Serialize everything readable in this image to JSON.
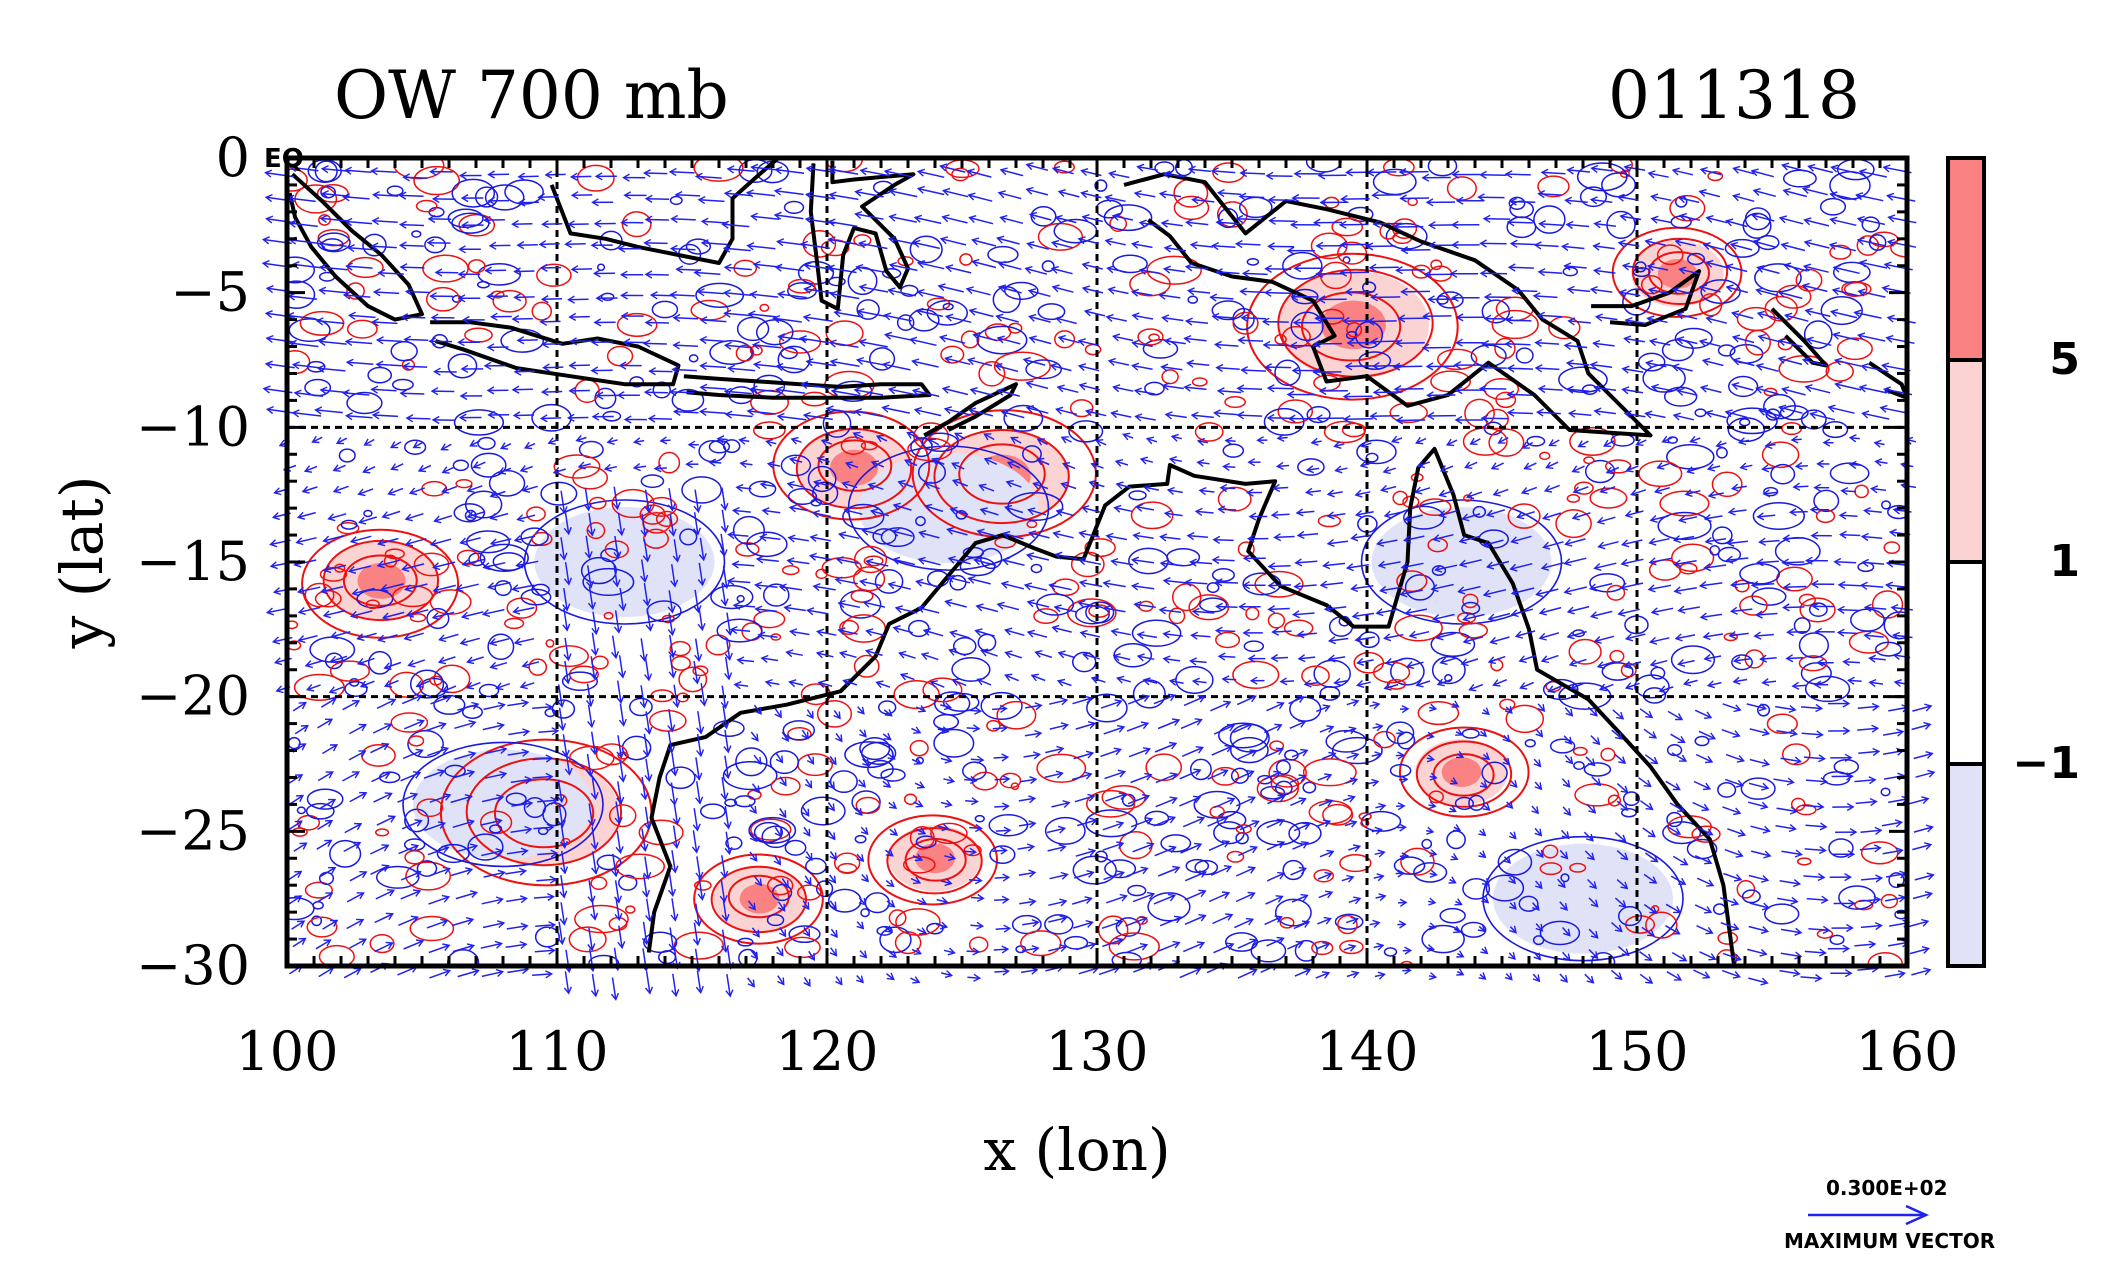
{
  "chart_data": {
    "type": "contour-vector-map",
    "title_left": "OW 700 mb",
    "title_right": "011318",
    "xlabel": "x (lon)",
    "ylabel": "y (lat)",
    "xlim": [
      100,
      160
    ],
    "ylim": [
      -30,
      0
    ],
    "x_ticks": [
      100,
      110,
      120,
      130,
      140,
      150,
      160
    ],
    "x_tick_labels": [
      "100",
      "110",
      "120",
      "130",
      "140",
      "150",
      "160"
    ],
    "y_ticks": [
      0,
      -5,
      -10,
      -15,
      -20,
      -25,
      -30
    ],
    "y_tick_labels": [
      "0",
      "−5",
      "−10",
      "−15",
      "−20",
      "−25",
      "−30"
    ],
    "corner_label": "EQ",
    "grid": true,
    "gridlines_x": [
      110,
      120,
      130,
      140,
      150
    ],
    "gridlines_y": [
      -10,
      -20
    ],
    "colorbar": {
      "levels": [
        -1,
        1,
        5
      ],
      "level_labels": [
        "−1",
        "1",
        "5"
      ],
      "colors": [
        "#e0e3f7",
        "#ffffff",
        "#fcd3d3",
        "#fa8282"
      ]
    },
    "contour_colors": {
      "positive": "#ee1111",
      "negative": "#1a1add"
    },
    "vector_color": "#2222ee",
    "coast_color": "#000000",
    "vector_key": {
      "magnitude_label": "0.300E+02",
      "caption": "MAXIMUM VECTOR"
    },
    "features": [
      {
        "name": "vortex",
        "lon": 109.5,
        "lat": -24.3,
        "value": 6
      },
      {
        "name": "vortex",
        "lon": 103.5,
        "lat": -15.7,
        "value": 4
      },
      {
        "name": "vortex",
        "lon": 126.5,
        "lat": -11.8,
        "value": 5
      },
      {
        "name": "vortex",
        "lon": 121.0,
        "lat": -11.5,
        "value": 4
      },
      {
        "name": "vortex",
        "lon": 143.5,
        "lat": -22.8,
        "value": 3
      },
      {
        "name": "vortex",
        "lon": 139.5,
        "lat": -6.2,
        "value": 6
      },
      {
        "name": "vortex",
        "lon": 151.5,
        "lat": -4.3,
        "value": 3
      },
      {
        "name": "vortex",
        "lon": 117.5,
        "lat": -27.5,
        "value": 3
      },
      {
        "name": "vortex",
        "lon": 124.0,
        "lat": -26.0,
        "value": 3
      },
      {
        "name": "strain",
        "lon": 108.0,
        "lat": -24.0,
        "value": -2
      },
      {
        "name": "strain",
        "lon": 112.5,
        "lat": -15.0,
        "value": -2
      },
      {
        "name": "strain",
        "lon": 143.5,
        "lat": -15.0,
        "value": -2
      },
      {
        "name": "strain",
        "lon": 124.5,
        "lat": -13.0,
        "value": -2
      },
      {
        "name": "strain",
        "lon": 148.0,
        "lat": -27.5,
        "value": -2
      }
    ],
    "coastlines": [
      {
        "name": "sumatra",
        "points": [
          [
            100.2,
            -0.6
          ],
          [
            101.3,
            -1.6
          ],
          [
            102.4,
            -2.7
          ],
          [
            103.5,
            -3.6
          ],
          [
            104.5,
            -4.7
          ],
          [
            105.0,
            -5.8
          ],
          [
            104.0,
            -6.0
          ],
          [
            103.0,
            -5.5
          ],
          [
            101.8,
            -4.4
          ],
          [
            100.9,
            -3.3
          ],
          [
            100.3,
            -2.2
          ],
          [
            100.1,
            -1.3
          ]
        ]
      },
      {
        "name": "java",
        "points": [
          [
            105.3,
            -6.1
          ],
          [
            106.8,
            -6.1
          ],
          [
            108.3,
            -6.3
          ],
          [
            110.2,
            -6.9
          ],
          [
            111.5,
            -6.7
          ],
          [
            113.0,
            -7.0
          ],
          [
            114.5,
            -7.7
          ],
          [
            114.3,
            -8.4
          ],
          [
            112.5,
            -8.4
          ],
          [
            110.5,
            -8.1
          ],
          [
            108.5,
            -7.8
          ],
          [
            106.5,
            -7.1
          ],
          [
            105.5,
            -6.8
          ]
        ]
      },
      {
        "name": "lesser-sunda",
        "points": [
          [
            114.7,
            -8.1
          ],
          [
            116.0,
            -8.2
          ],
          [
            117.5,
            -8.3
          ],
          [
            119.0,
            -8.4
          ],
          [
            120.5,
            -8.5
          ],
          [
            122.0,
            -8.4
          ],
          [
            123.5,
            -8.4
          ],
          [
            123.8,
            -8.8
          ],
          [
            122.0,
            -8.9
          ],
          [
            120.0,
            -8.9
          ],
          [
            118.0,
            -8.9
          ],
          [
            116.0,
            -8.8
          ],
          [
            114.8,
            -8.7
          ]
        ]
      },
      {
        "name": "borneo",
        "points": [
          [
            109.8,
            -1.0
          ],
          [
            110.5,
            -2.8
          ],
          [
            111.8,
            -3.0
          ],
          [
            113.0,
            -3.3
          ],
          [
            114.5,
            -3.6
          ],
          [
            116.0,
            -3.9
          ],
          [
            116.5,
            -3.0
          ],
          [
            116.5,
            -1.5
          ],
          [
            117.5,
            -0.6
          ],
          [
            118.2,
            0.0
          ]
        ]
      },
      {
        "name": "sulawesi",
        "points": [
          [
            119.5,
            -0.2
          ],
          [
            119.4,
            -2.0
          ],
          [
            119.6,
            -3.6
          ],
          [
            119.8,
            -5.3
          ],
          [
            120.4,
            -5.6
          ],
          [
            120.6,
            -3.6
          ],
          [
            121.0,
            -2.6
          ],
          [
            121.8,
            -2.8
          ],
          [
            122.2,
            -4.2
          ],
          [
            122.7,
            -4.8
          ],
          [
            123.0,
            -4.1
          ],
          [
            122.5,
            -3.0
          ],
          [
            121.3,
            -1.8
          ],
          [
            122.5,
            -1.0
          ],
          [
            123.2,
            -0.6
          ],
          [
            121.0,
            -0.8
          ],
          [
            120.2,
            -0.9
          ],
          [
            120.2,
            -0.1
          ]
        ]
      },
      {
        "name": "timor",
        "points": [
          [
            123.6,
            -10.3
          ],
          [
            124.5,
            -9.8
          ],
          [
            125.5,
            -9.1
          ],
          [
            127.0,
            -8.4
          ],
          [
            126.8,
            -8.8
          ],
          [
            125.5,
            -9.6
          ],
          [
            124.5,
            -10.1
          ]
        ]
      },
      {
        "name": "new-guinea",
        "points": [
          [
            131.0,
            -1.0
          ],
          [
            132.5,
            -0.6
          ],
          [
            134.0,
            -0.9
          ],
          [
            135.5,
            -2.8
          ],
          [
            137.0,
            -1.6
          ],
          [
            138.5,
            -1.9
          ],
          [
            140.5,
            -2.4
          ],
          [
            142.0,
            -3.1
          ],
          [
            144.0,
            -3.8
          ],
          [
            145.6,
            -4.9
          ],
          [
            146.5,
            -6.0
          ],
          [
            147.8,
            -6.8
          ],
          [
            148.2,
            -8.0
          ],
          [
            149.5,
            -9.3
          ],
          [
            150.5,
            -10.3
          ],
          [
            149.0,
            -10.2
          ],
          [
            147.5,
            -10.1
          ],
          [
            146.2,
            -8.8
          ],
          [
            144.5,
            -7.6
          ],
          [
            143.0,
            -8.8
          ],
          [
            141.5,
            -9.2
          ],
          [
            140.0,
            -8.1
          ],
          [
            138.5,
            -8.3
          ],
          [
            138.0,
            -7.0
          ],
          [
            138.8,
            -6.6
          ],
          [
            138.0,
            -5.3
          ],
          [
            136.5,
            -4.6
          ],
          [
            135.0,
            -4.4
          ],
          [
            133.5,
            -3.9
          ],
          [
            132.7,
            -2.9
          ],
          [
            131.9,
            -2.3
          ]
        ]
      },
      {
        "name": "new-britain",
        "points": [
          [
            148.3,
            -5.5
          ],
          [
            149.8,
            -5.5
          ],
          [
            151.2,
            -5.0
          ],
          [
            152.3,
            -4.2
          ],
          [
            151.8,
            -5.6
          ],
          [
            150.3,
            -6.2
          ],
          [
            149.0,
            -6.1
          ]
        ]
      },
      {
        "name": "solomons",
        "points": [
          [
            155.0,
            -5.6
          ],
          [
            156.2,
            -6.8
          ],
          [
            157.0,
            -7.7
          ],
          [
            156.5,
            -7.6
          ],
          [
            155.5,
            -6.6
          ]
        ]
      },
      {
        "name": "solomons-east",
        "points": [
          [
            158.6,
            -7.6
          ],
          [
            159.8,
            -8.4
          ],
          [
            160.0,
            -8.9
          ],
          [
            159.2,
            -8.6
          ]
        ]
      },
      {
        "name": "australia",
        "points": [
          [
            113.4,
            -29.5
          ],
          [
            113.6,
            -28.0
          ],
          [
            114.2,
            -26.3
          ],
          [
            113.5,
            -24.5
          ],
          [
            113.8,
            -23.0
          ],
          [
            114.2,
            -21.8
          ],
          [
            115.5,
            -21.5
          ],
          [
            116.8,
            -20.6
          ],
          [
            118.5,
            -20.3
          ],
          [
            120.5,
            -19.8
          ],
          [
            121.8,
            -18.5
          ],
          [
            122.3,
            -17.3
          ],
          [
            123.5,
            -16.7
          ],
          [
            124.5,
            -15.5
          ],
          [
            125.5,
            -14.3
          ],
          [
            126.5,
            -14.0
          ],
          [
            127.7,
            -14.5
          ],
          [
            128.5,
            -14.8
          ],
          [
            129.5,
            -14.9
          ],
          [
            130.3,
            -12.9
          ],
          [
            131.2,
            -12.2
          ],
          [
            132.6,
            -12.1
          ],
          [
            132.7,
            -11.4
          ],
          [
            133.6,
            -11.8
          ],
          [
            135.5,
            -12.1
          ],
          [
            136.6,
            -12.0
          ],
          [
            136.0,
            -13.4
          ],
          [
            135.6,
            -14.6
          ],
          [
            136.8,
            -15.9
          ],
          [
            138.5,
            -16.6
          ],
          [
            139.5,
            -17.4
          ],
          [
            140.8,
            -17.4
          ],
          [
            141.5,
            -15.0
          ],
          [
            141.6,
            -13.0
          ],
          [
            141.9,
            -11.5
          ],
          [
            142.5,
            -10.8
          ],
          [
            143.2,
            -12.5
          ],
          [
            143.6,
            -14.0
          ],
          [
            144.5,
            -14.3
          ],
          [
            145.4,
            -15.8
          ],
          [
            146.0,
            -17.5
          ],
          [
            146.3,
            -19.0
          ],
          [
            148.2,
            -20.1
          ],
          [
            149.5,
            -21.5
          ],
          [
            150.5,
            -22.6
          ],
          [
            151.5,
            -24.0
          ],
          [
            152.7,
            -25.3
          ],
          [
            153.2,
            -27.0
          ],
          [
            153.4,
            -28.5
          ],
          [
            153.6,
            -30.0
          ]
        ]
      }
    ]
  }
}
